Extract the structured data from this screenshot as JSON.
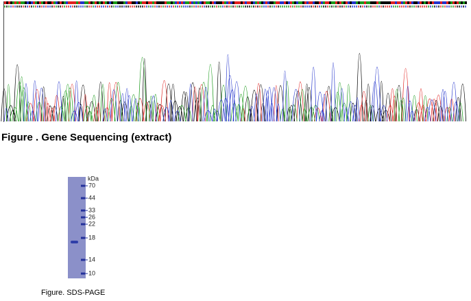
{
  "sequencing": {
    "caption": "Figure . Gene Sequencing (extract)"
  },
  "gel": {
    "unit_label": "kDa",
    "markers": [
      "70",
      "44",
      "33",
      "26",
      "22",
      "18",
      "14",
      "10"
    ],
    "caption": "Figure. SDS-PAGE"
  }
}
